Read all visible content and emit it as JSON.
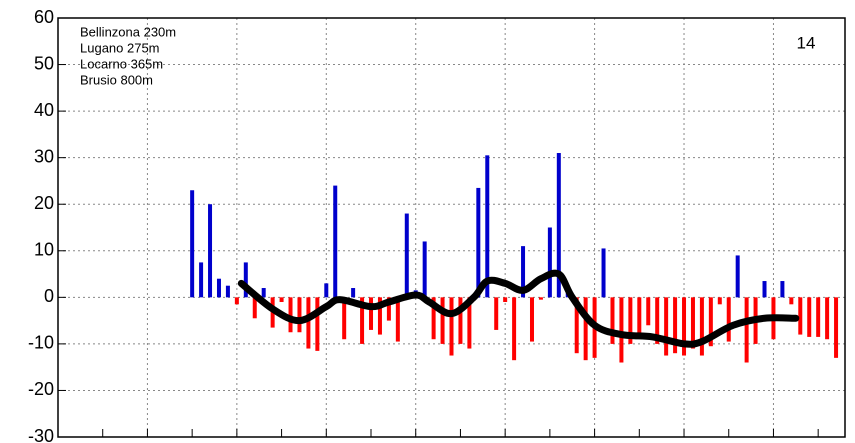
{
  "chart_data": {
    "type": "bar",
    "annotations": [
      "Bellinzona 230m",
      "Lugano 275m",
      "Locarno 365m",
      "Brusio 800m"
    ],
    "label": "14",
    "x": [
      15,
      16,
      17,
      18,
      19,
      20,
      21,
      22,
      23,
      24,
      25,
      26,
      27,
      28,
      29,
      30,
      31,
      32,
      33,
      34,
      35,
      36,
      37,
      38,
      39,
      40,
      41,
      42,
      43,
      44,
      45,
      46,
      47,
      48,
      49,
      50,
      51,
      52,
      53,
      54,
      55,
      56,
      57,
      58,
      59,
      60,
      61,
      62,
      63,
      64,
      65,
      66,
      67,
      68,
      69,
      70,
      71,
      72,
      73,
      74,
      75,
      76,
      77,
      78,
      79,
      80,
      81,
      82,
      83,
      84,
      85,
      86,
      87
    ],
    "values": [
      23,
      7.5,
      20,
      4,
      2.5,
      -1.5,
      7.5,
      -4.5,
      2,
      -6.5,
      -1,
      -7.5,
      -7.5,
      -11,
      -11.5,
      3,
      24,
      -9,
      2,
      -10,
      -7,
      -8,
      -5,
      -9.5,
      18,
      1.5,
      12,
      -9,
      -10,
      -12.5,
      -10,
      -11,
      23.5,
      30.5,
      -7,
      -1,
      -13.5,
      11,
      -9.5,
      -0.5,
      15,
      31,
      1,
      -12,
      -13.5,
      -13,
      10.5,
      -10,
      -14,
      -10,
      -8.5,
      -6,
      -10,
      -12.5,
      -12,
      -12.5,
      -11,
      -12.5,
      -10.5,
      -1.5,
      -9.5,
      9,
      -14,
      -10,
      3.5,
      -9,
      3.5,
      -1.5,
      -8,
      -8.5,
      -8.5,
      -9,
      -13
    ],
    "color_positive": "#0000cc",
    "color_negative": "#ff0000",
    "line": {
      "color": "#000000",
      "x": [
        20.5,
        24,
        27,
        30,
        31.5,
        35,
        37,
        40,
        41.5,
        44,
        46.5,
        48,
        50,
        52,
        54,
        56,
        57.5,
        60,
        63,
        66.5,
        70,
        72,
        75.5,
        79,
        82.5
      ],
      "values": [
        3,
        -2.5,
        -5,
        -2,
        -0.5,
        -2,
        -1,
        0.5,
        -1,
        -3.5,
        0,
        3.5,
        3,
        1.5,
        4,
        5,
        0,
        -6,
        -8,
        -8.5,
        -10,
        -9.5,
        -6,
        -4.5,
        -4.5
      ]
    },
    "xlim": [
      0,
      88
    ],
    "xticks": [
      0,
      5,
      10,
      15,
      20,
      25,
      30,
      35,
      40,
      45,
      50,
      55,
      60,
      65,
      70,
      75,
      80,
      85
    ],
    "xgrid": [
      10,
      20,
      30,
      40,
      50,
      60,
      70,
      80
    ],
    "ylim": [
      -30,
      60
    ],
    "yticks": [
      -30,
      -20,
      -10,
      0,
      10,
      20,
      30,
      40,
      50,
      60
    ],
    "grid": true
  }
}
